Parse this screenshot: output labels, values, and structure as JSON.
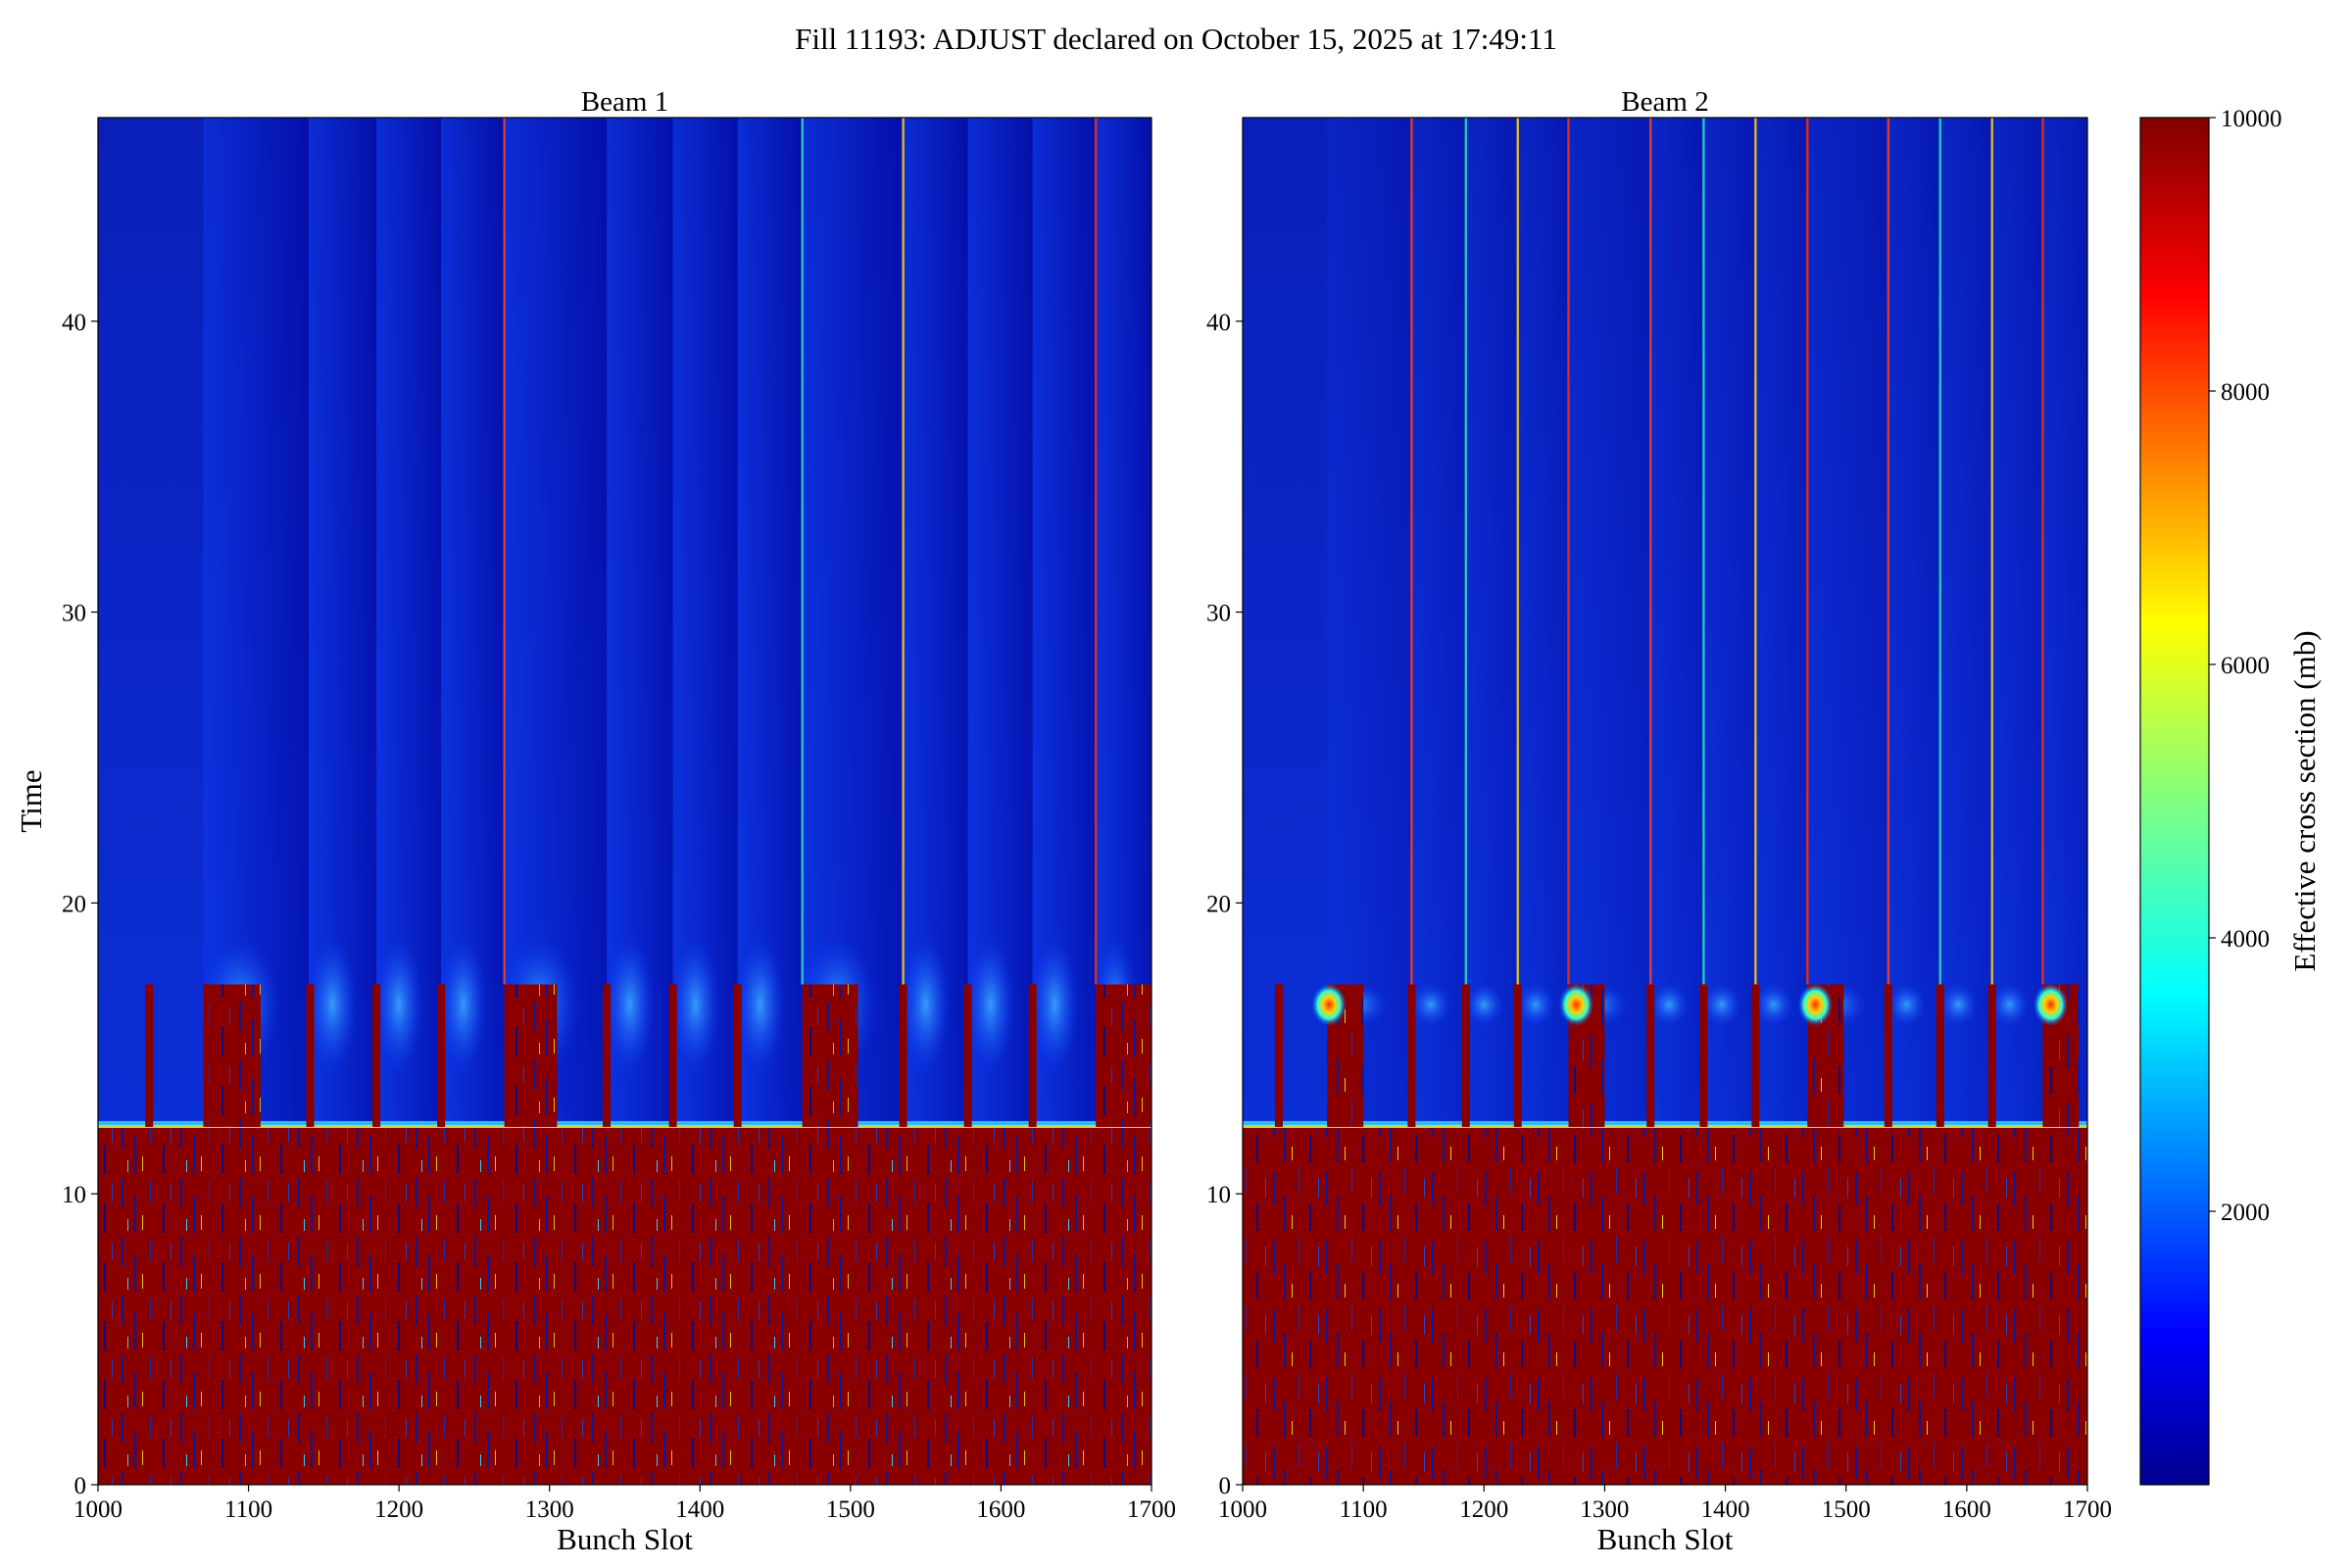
{
  "chart_data": {
    "type": "heatmap",
    "suptitle": "Fill 11193: ADJUST declared on October 15, 2025 at 17:49:11",
    "panels": [
      {
        "title": "Beam 1",
        "xlabel": "Bunch Slot",
        "ylabel": "Time",
        "xlim": [
          1000,
          1700
        ],
        "ylim": [
          0,
          47
        ],
        "xticks": [
          1000,
          1100,
          1200,
          1300,
          1400,
          1500,
          1600,
          1700
        ],
        "yticks": [
          0,
          10,
          20,
          30,
          40
        ],
        "transition_time": 12.3,
        "train_starts": [
          1070,
          1140,
          1185,
          1228,
          1270,
          1338,
          1382,
          1425,
          1468,
          1535,
          1578,
          1621,
          1663
        ],
        "gap_blocks": [
          [
            1070,
            1108
          ],
          [
            1270,
            1305
          ],
          [
            1468,
            1505
          ],
          [
            1663,
            1700
          ]
        ],
        "gap_block_top": 17.2,
        "single_bunches": [
          1034,
          1141,
          1185,
          1228,
          1338,
          1382,
          1425,
          1535,
          1578,
          1621
        ],
        "bright_streaks": [
          1270,
          1468,
          1535,
          1663
        ]
      },
      {
        "title": "Beam 2",
        "xlabel": "Bunch Slot",
        "ylabel": "",
        "xlim": [
          1000,
          1700
        ],
        "ylim": [
          0,
          47
        ],
        "xticks": [
          1000,
          1100,
          1200,
          1300,
          1400,
          1500,
          1600,
          1700
        ],
        "yticks": [
          0,
          10,
          20,
          30,
          40
        ],
        "transition_time": 12.3,
        "train_starts": [
          1070,
          1140,
          1185,
          1228,
          1270,
          1338,
          1382,
          1425,
          1468,
          1535,
          1578,
          1621,
          1663
        ],
        "gap_blocks": [
          [
            1070,
            1100
          ],
          [
            1270,
            1300
          ],
          [
            1468,
            1498
          ],
          [
            1663,
            1693
          ]
        ],
        "gap_block_top": 17.2,
        "single_bunches": [
          1030,
          1140,
          1185,
          1228,
          1338,
          1382,
          1425,
          1535,
          1578,
          1621
        ],
        "hot_spots": [
          [
            1065,
            16.5
          ],
          [
            1270,
            16.5
          ],
          [
            1468,
            16.5
          ],
          [
            1663,
            16.5
          ]
        ],
        "bright_streaks": [
          1140,
          1185,
          1228,
          1270,
          1338,
          1382,
          1425,
          1468,
          1535,
          1578,
          1621,
          1663
        ]
      }
    ],
    "colorbar": {
      "label": "Effective cross section (mb)",
      "colormap": "jet",
      "vmin": 0,
      "vmax": 10000,
      "ticks": [
        2000,
        4000,
        6000,
        8000,
        10000
      ]
    }
  }
}
